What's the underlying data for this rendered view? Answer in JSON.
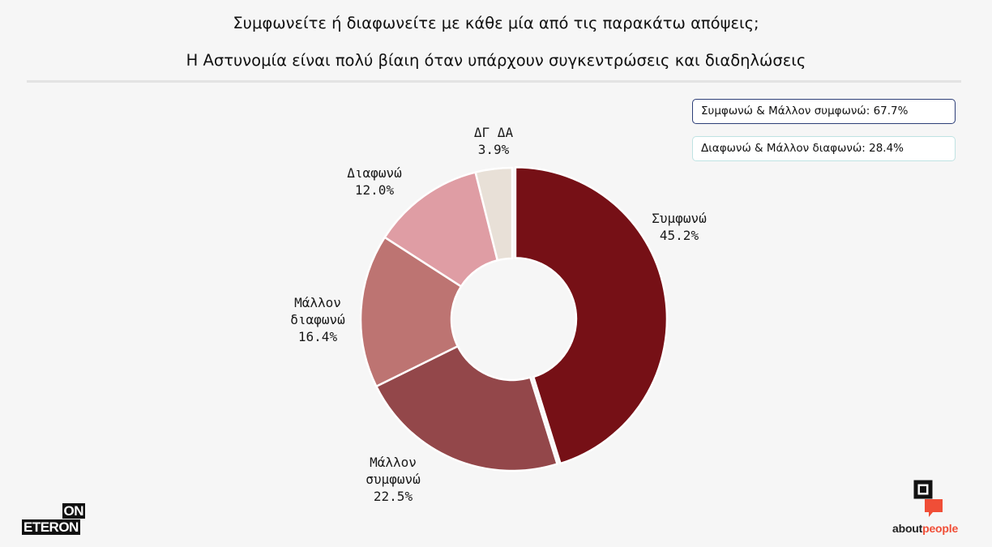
{
  "title": {
    "line1": "Συμφωνείτε ή διαφωνείτε με κάθε μία από τις παρακάτω απόψεις;",
    "line2": "Η Αστυνομία είναι πολύ βίαιη όταν υπάρχουν συγκεντρώσεις και διαδηλώσεις"
  },
  "summary": {
    "agree": "Συμφωνώ & Μάλλον συμφωνώ: 67.7%",
    "disagree": "Διαφωνώ & Μάλλον διαφωνώ: 28.4%"
  },
  "chart_data": {
    "type": "pie",
    "style": "donut",
    "start": "12 o'clock",
    "direction": "clockwise",
    "slices": [
      {
        "label": "Συμφωνώ",
        "value": 45.2,
        "value_label": "45.2%",
        "color": "#761016"
      },
      {
        "label": "Μάλλον συμφωνώ",
        "value": 22.5,
        "value_label": "22.5%",
        "color": "#93474a"
      },
      {
        "label": "Μάλλον διαφωνώ",
        "value": 16.4,
        "value_label": "16.4%",
        "color": "#bd7472"
      },
      {
        "label": "Διαφωνώ",
        "value": 12.0,
        "value_label": "12.0%",
        "color": "#df9da4"
      },
      {
        "label": "ΔΓ ΔΑ",
        "value": 3.9,
        "value_label": "3.9%",
        "color": "#e8e0d7"
      }
    ]
  },
  "logos": {
    "eteron_top": "ON",
    "eteron_bottom": "ETERON",
    "aboutpeople_about": "about",
    "aboutpeople_people": "people"
  }
}
